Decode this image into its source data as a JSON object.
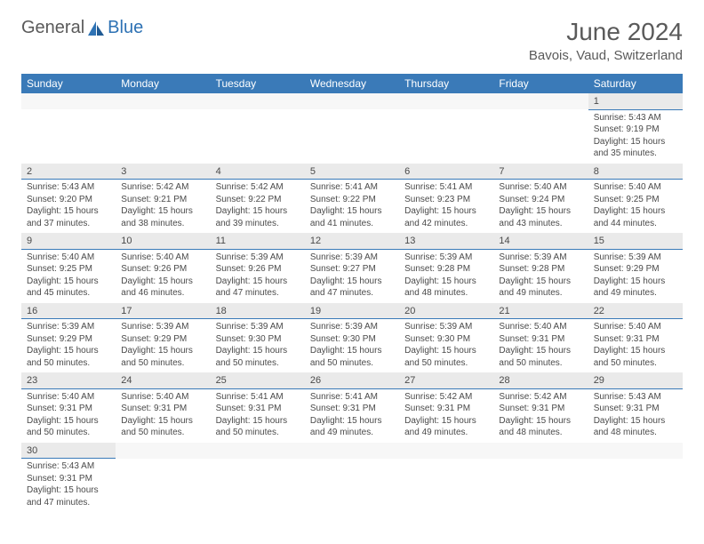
{
  "header": {
    "logo_general": "General",
    "logo_blue": "Blue",
    "month_title": "June 2024",
    "location": "Bavois, Vaud, Switzerland"
  },
  "colors": {
    "header_bg": "#3a7ab8",
    "header_text": "#ffffff",
    "daynum_bg": "#eaeaea",
    "text": "#4a4a4a",
    "divider": "#3a7ab8",
    "logo_gray": "#5a5a5a",
    "logo_blue": "#2e72b4"
  },
  "weekdays": [
    "Sunday",
    "Monday",
    "Tuesday",
    "Wednesday",
    "Thursday",
    "Friday",
    "Saturday"
  ],
  "weeks": [
    [
      null,
      null,
      null,
      null,
      null,
      null,
      {
        "d": "1",
        "sr": "5:43 AM",
        "ss": "9:19 PM",
        "dl": "15 hours and 35 minutes."
      }
    ],
    [
      {
        "d": "2",
        "sr": "5:43 AM",
        "ss": "9:20 PM",
        "dl": "15 hours and 37 minutes."
      },
      {
        "d": "3",
        "sr": "5:42 AM",
        "ss": "9:21 PM",
        "dl": "15 hours and 38 minutes."
      },
      {
        "d": "4",
        "sr": "5:42 AM",
        "ss": "9:22 PM",
        "dl": "15 hours and 39 minutes."
      },
      {
        "d": "5",
        "sr": "5:41 AM",
        "ss": "9:22 PM",
        "dl": "15 hours and 41 minutes."
      },
      {
        "d": "6",
        "sr": "5:41 AM",
        "ss": "9:23 PM",
        "dl": "15 hours and 42 minutes."
      },
      {
        "d": "7",
        "sr": "5:40 AM",
        "ss": "9:24 PM",
        "dl": "15 hours and 43 minutes."
      },
      {
        "d": "8",
        "sr": "5:40 AM",
        "ss": "9:25 PM",
        "dl": "15 hours and 44 minutes."
      }
    ],
    [
      {
        "d": "9",
        "sr": "5:40 AM",
        "ss": "9:25 PM",
        "dl": "15 hours and 45 minutes."
      },
      {
        "d": "10",
        "sr": "5:40 AM",
        "ss": "9:26 PM",
        "dl": "15 hours and 46 minutes."
      },
      {
        "d": "11",
        "sr": "5:39 AM",
        "ss": "9:26 PM",
        "dl": "15 hours and 47 minutes."
      },
      {
        "d": "12",
        "sr": "5:39 AM",
        "ss": "9:27 PM",
        "dl": "15 hours and 47 minutes."
      },
      {
        "d": "13",
        "sr": "5:39 AM",
        "ss": "9:28 PM",
        "dl": "15 hours and 48 minutes."
      },
      {
        "d": "14",
        "sr": "5:39 AM",
        "ss": "9:28 PM",
        "dl": "15 hours and 49 minutes."
      },
      {
        "d": "15",
        "sr": "5:39 AM",
        "ss": "9:29 PM",
        "dl": "15 hours and 49 minutes."
      }
    ],
    [
      {
        "d": "16",
        "sr": "5:39 AM",
        "ss": "9:29 PM",
        "dl": "15 hours and 50 minutes."
      },
      {
        "d": "17",
        "sr": "5:39 AM",
        "ss": "9:29 PM",
        "dl": "15 hours and 50 minutes."
      },
      {
        "d": "18",
        "sr": "5:39 AM",
        "ss": "9:30 PM",
        "dl": "15 hours and 50 minutes."
      },
      {
        "d": "19",
        "sr": "5:39 AM",
        "ss": "9:30 PM",
        "dl": "15 hours and 50 minutes."
      },
      {
        "d": "20",
        "sr": "5:39 AM",
        "ss": "9:30 PM",
        "dl": "15 hours and 50 minutes."
      },
      {
        "d": "21",
        "sr": "5:40 AM",
        "ss": "9:31 PM",
        "dl": "15 hours and 50 minutes."
      },
      {
        "d": "22",
        "sr": "5:40 AM",
        "ss": "9:31 PM",
        "dl": "15 hours and 50 minutes."
      }
    ],
    [
      {
        "d": "23",
        "sr": "5:40 AM",
        "ss": "9:31 PM",
        "dl": "15 hours and 50 minutes."
      },
      {
        "d": "24",
        "sr": "5:40 AM",
        "ss": "9:31 PM",
        "dl": "15 hours and 50 minutes."
      },
      {
        "d": "25",
        "sr": "5:41 AM",
        "ss": "9:31 PM",
        "dl": "15 hours and 50 minutes."
      },
      {
        "d": "26",
        "sr": "5:41 AM",
        "ss": "9:31 PM",
        "dl": "15 hours and 49 minutes."
      },
      {
        "d": "27",
        "sr": "5:42 AM",
        "ss": "9:31 PM",
        "dl": "15 hours and 49 minutes."
      },
      {
        "d": "28",
        "sr": "5:42 AM",
        "ss": "9:31 PM",
        "dl": "15 hours and 48 minutes."
      },
      {
        "d": "29",
        "sr": "5:43 AM",
        "ss": "9:31 PM",
        "dl": "15 hours and 48 minutes."
      }
    ],
    [
      {
        "d": "30",
        "sr": "5:43 AM",
        "ss": "9:31 PM",
        "dl": "15 hours and 47 minutes."
      },
      null,
      null,
      null,
      null,
      null,
      null
    ]
  ],
  "labels": {
    "sunrise": "Sunrise:",
    "sunset": "Sunset:",
    "daylight": "Daylight:"
  }
}
